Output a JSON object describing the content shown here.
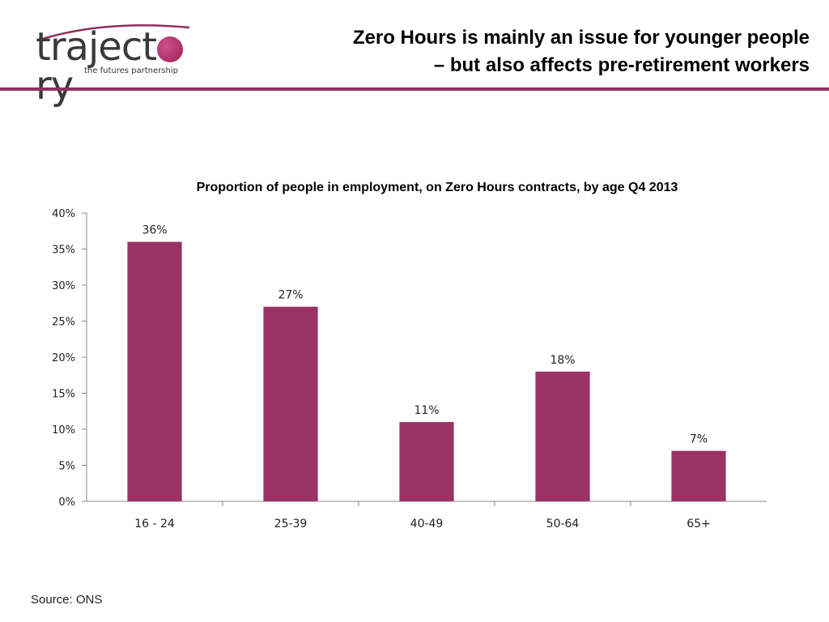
{
  "logo": {
    "word_start": "traject",
    "word_end": "ry",
    "tagline": "the futures partnership"
  },
  "header": {
    "title_line1": "Zero Hours is mainly an issue for younger people",
    "title_line2": "– but also affects pre-retirement workers"
  },
  "chart_data": {
    "type": "bar",
    "title": "Proportion of people in employment, on Zero Hours contracts, by age Q4 2013",
    "categories": [
      "16 - 24",
      "25-39",
      "40-49",
      "50-64",
      "65+"
    ],
    "values": [
      36,
      27,
      11,
      18,
      7
    ],
    "value_labels": [
      "36%",
      "27%",
      "11%",
      "18%",
      "7%"
    ],
    "y_ticks": [
      "0%",
      "5%",
      "10%",
      "15%",
      "20%",
      "25%",
      "30%",
      "35%",
      "40%"
    ],
    "ylim": [
      0,
      40
    ],
    "xlabel": "",
    "ylabel": "",
    "grid": false,
    "bar_color": "#993366"
  },
  "footer": {
    "source": "Source: ONS"
  }
}
